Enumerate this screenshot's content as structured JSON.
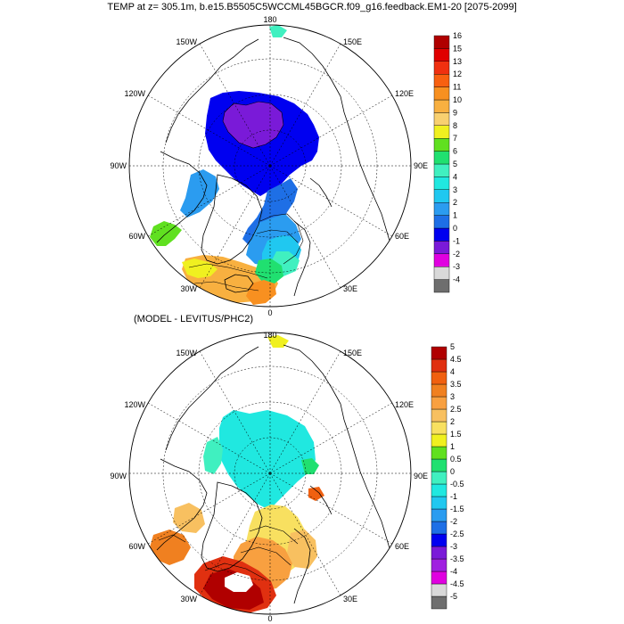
{
  "title": "TEMP at z= 305.1m, b.e15.B5505C5WCCML45BGCR.f09_g16.feedback.EM1-20 [2075-2099]",
  "subtitle": "(MODEL - LEVITUS/PHC2)",
  "maps": [
    {
      "name": "model",
      "longitude_labels": [
        "180",
        "150E",
        "120E",
        "90E",
        "60E",
        "30E",
        "0",
        "30W",
        "60W",
        "90W",
        "120W",
        "150W"
      ],
      "colorbar": {
        "colors": [
          "#6e6e6e",
          "#d9d9d9",
          "#e000e0",
          "#7a1ad8",
          "#0000f0",
          "#1e6fe6",
          "#2b9cf0",
          "#20c8f0",
          "#20e8e0",
          "#40f0c0",
          "#20e070",
          "#60e020",
          "#f0f020",
          "#f8d070",
          "#f8b040",
          "#f89020",
          "#f86010",
          "#f03010",
          "#e00000",
          "#b00000"
        ],
        "labels": [
          "-4",
          "-3",
          "-2",
          "-1",
          "0",
          "1",
          "2",
          "3",
          "4",
          "5",
          "6",
          "7",
          "8",
          "9",
          "10",
          "11",
          "12",
          "13",
          "15",
          "16"
        ],
        "min": -4,
        "max": 16
      }
    },
    {
      "name": "difference",
      "longitude_labels": [
        "180",
        "150E",
        "120E",
        "90E",
        "60E",
        "30E",
        "0",
        "30W",
        "60W",
        "90W",
        "120W",
        "150W"
      ],
      "colorbar": {
        "colors": [
          "#6e6e6e",
          "#d9d9d9",
          "#e000e0",
          "#a020e0",
          "#7a1ad8",
          "#0000f0",
          "#1e6fe6",
          "#2b9cf0",
          "#20c8f0",
          "#20e8e0",
          "#40f0c0",
          "#20e070",
          "#60e020",
          "#f0f020",
          "#f8e060",
          "#f8c060",
          "#f8a040",
          "#f08020",
          "#f06010",
          "#e03010",
          "#b00000"
        ],
        "labels": [
          "-5",
          "-4.5",
          "-4",
          "-3.5",
          "-3",
          "-2.5",
          "-2",
          "-1.5",
          "-1",
          "-0.5",
          "0",
          "0.5",
          "1",
          "1.5",
          "2",
          "2.5",
          "3",
          "3.5",
          "4",
          "4.5",
          "5"
        ],
        "min": -5,
        "max": 5
      }
    }
  ]
}
